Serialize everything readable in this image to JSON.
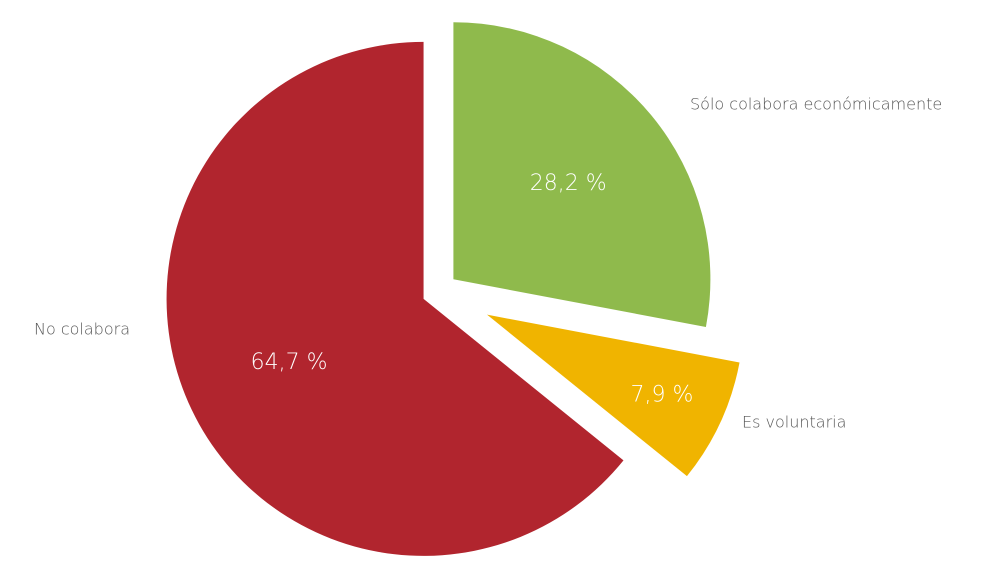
{
  "chart_data": {
    "type": "pie",
    "categories": [
      "Sólo colabora económicamente",
      "Es voluntaria",
      "No colabora"
    ],
    "values": [
      28.2,
      7.9,
      64.7
    ],
    "value_labels": [
      "28,2 %",
      "7,9 %",
      "64,7 %"
    ],
    "colors": [
      "#8fba4c",
      "#f0b400",
      "#b1252e"
    ]
  }
}
